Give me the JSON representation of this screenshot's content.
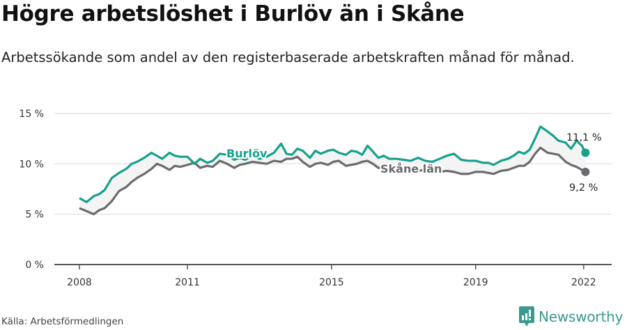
{
  "title": "Högre arbetslöshet i Burlöv än i Skåne",
  "subtitle": "Arbetssökande som andel av den registerbaserade arbetskraften månad för månad.",
  "source": "Källa: Arbetsförmedlingen",
  "brand": "Newsworthy",
  "colors": {
    "burlov": "#16a08d",
    "skane": "#6b6a6f",
    "grid": "#e2e2e2",
    "axis": "#555555",
    "brand": "#3a9a8f"
  },
  "chart_data": {
    "type": "line",
    "title": "Högre arbetslöshet i Burlöv än i Skåne",
    "subtitle": "Arbetssökande som andel av den registerbaserade arbetskraften månad för månad.",
    "xlabel": "",
    "ylabel": "",
    "ylim": [
      0,
      15
    ],
    "yticks": [
      "0 %",
      "5 %",
      "10 %",
      "15 %"
    ],
    "xticks": [
      "2008",
      "2011",
      "2015",
      "2019",
      "2022"
    ],
    "grid": true,
    "end_labels": {
      "Burlöv": "11,1 %",
      "Skåne län": "9,2 %"
    },
    "series": [
      {
        "name": "Burlöv",
        "x": [
          2008.0,
          2008.2,
          2008.4,
          2008.55,
          2008.7,
          2008.9,
          2009.1,
          2009.3,
          2009.45,
          2009.6,
          2009.8,
          2010.0,
          2010.15,
          2010.3,
          2010.5,
          2010.65,
          2010.8,
          2011.0,
          2011.2,
          2011.35,
          2011.55,
          2011.7,
          2011.9,
          2012.1,
          2012.3,
          2012.45,
          2012.6,
          2012.8,
          2013.0,
          2013.2,
          2013.4,
          2013.6,
          2013.75,
          2013.9,
          2014.05,
          2014.2,
          2014.4,
          2014.55,
          2014.7,
          2014.9,
          2015.05,
          2015.2,
          2015.4,
          2015.55,
          2015.7,
          2015.85,
          2016.0,
          2016.15,
          2016.3,
          2016.45,
          2016.6,
          2016.8,
          2017.0,
          2017.2,
          2017.4,
          2017.6,
          2017.8,
          2018.0,
          2018.2,
          2018.4,
          2018.6,
          2018.8,
          2019.0,
          2019.2,
          2019.35,
          2019.5,
          2019.7,
          2019.9,
          2020.05,
          2020.2,
          2020.35,
          2020.5,
          2020.65,
          2020.8,
          2021.0,
          2021.15,
          2021.3,
          2021.5,
          2021.65,
          2021.8,
          2021.95,
          2022.05
        ],
        "values": [
          6.6,
          6.2,
          6.8,
          7.0,
          7.4,
          8.6,
          9.1,
          9.5,
          10.0,
          10.2,
          10.6,
          11.1,
          10.8,
          10.5,
          11.1,
          10.8,
          10.7,
          10.7,
          10.0,
          10.5,
          10.1,
          10.3,
          11.0,
          10.9,
          10.4,
          10.6,
          10.4,
          10.8,
          10.5,
          10.7,
          11.1,
          12.0,
          11.0,
          10.9,
          11.5,
          11.3,
          10.6,
          11.3,
          11.0,
          11.3,
          11.4,
          11.1,
          10.9,
          11.3,
          11.2,
          10.9,
          11.8,
          11.2,
          10.6,
          10.8,
          10.5,
          10.5,
          10.4,
          10.3,
          10.6,
          10.3,
          10.2,
          10.5,
          10.8,
          11.0,
          10.4,
          10.3,
          10.3,
          10.1,
          10.1,
          9.9,
          10.3,
          10.5,
          10.8,
          11.2,
          11.0,
          11.4,
          12.5,
          13.7,
          13.2,
          12.8,
          12.3,
          12.1,
          11.5,
          12.3,
          11.8,
          11.1
        ]
      },
      {
        "name": "Skåne län",
        "x": [
          2008.0,
          2008.2,
          2008.4,
          2008.55,
          2008.7,
          2008.9,
          2009.1,
          2009.3,
          2009.45,
          2009.6,
          2009.8,
          2010.0,
          2010.15,
          2010.3,
          2010.5,
          2010.65,
          2010.8,
          2011.0,
          2011.2,
          2011.35,
          2011.55,
          2011.7,
          2011.9,
          2012.1,
          2012.3,
          2012.45,
          2012.6,
          2012.8,
          2013.0,
          2013.2,
          2013.4,
          2013.6,
          2013.75,
          2013.9,
          2014.05,
          2014.2,
          2014.4,
          2014.55,
          2014.7,
          2014.9,
          2015.05,
          2015.2,
          2015.4,
          2015.55,
          2015.7,
          2015.85,
          2016.0,
          2016.15,
          2016.3,
          2016.45,
          2016.6,
          2016.8,
          2017.0,
          2017.2,
          2017.4,
          2017.6,
          2017.8,
          2018.0,
          2018.2,
          2018.4,
          2018.6,
          2018.8,
          2019.0,
          2019.2,
          2019.35,
          2019.5,
          2019.7,
          2019.9,
          2020.05,
          2020.2,
          2020.35,
          2020.5,
          2020.65,
          2020.8,
          2021.0,
          2021.15,
          2021.3,
          2021.5,
          2021.65,
          2021.8,
          2021.95,
          2022.05
        ],
        "values": [
          5.6,
          5.3,
          5.0,
          5.4,
          5.6,
          6.3,
          7.3,
          7.7,
          8.2,
          8.6,
          9.0,
          9.5,
          10.0,
          9.8,
          9.4,
          9.8,
          9.7,
          9.9,
          10.1,
          9.6,
          9.8,
          9.7,
          10.3,
          10.0,
          9.6,
          9.9,
          10.0,
          10.2,
          10.1,
          10.0,
          10.3,
          10.2,
          10.5,
          10.5,
          10.7,
          10.2,
          9.7,
          10.0,
          10.1,
          9.9,
          10.2,
          10.3,
          9.8,
          9.9,
          10.0,
          10.2,
          10.3,
          10.0,
          9.6,
          9.6,
          9.5,
          9.4,
          9.4,
          9.3,
          9.3,
          9.4,
          9.2,
          9.2,
          9.3,
          9.2,
          9.0,
          9.0,
          9.2,
          9.2,
          9.1,
          9.0,
          9.3,
          9.4,
          9.6,
          9.8,
          9.8,
          10.2,
          11.0,
          11.6,
          11.1,
          11.0,
          10.9,
          10.2,
          9.9,
          9.7,
          9.4,
          9.2
        ]
      }
    ]
  }
}
